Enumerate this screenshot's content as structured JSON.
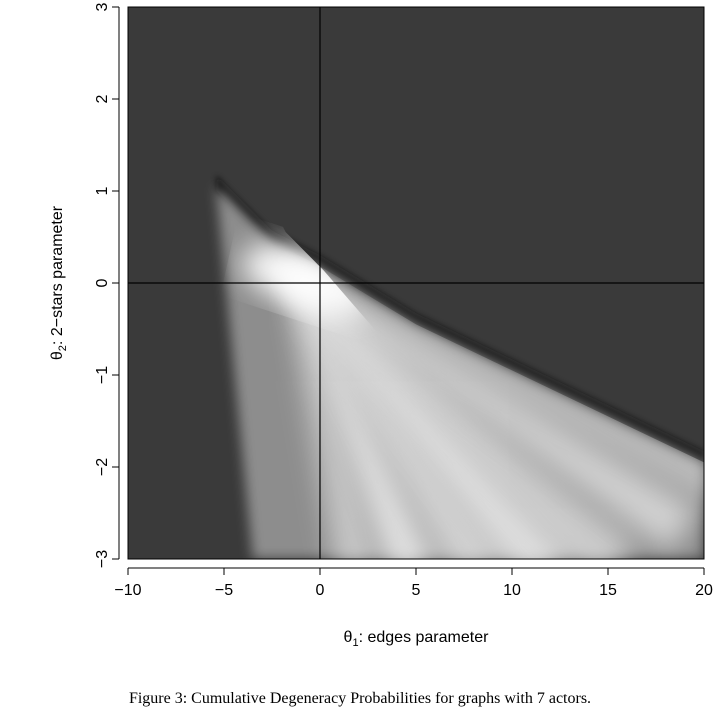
{
  "chart_data": {
    "type": "heatmap",
    "x_label": {
      "symbol": "θ",
      "sub": "1",
      "text": ": edges parameter"
    },
    "y_label": {
      "symbol": "θ",
      "sub": "2",
      "text": ": 2−stars parameter"
    },
    "xlim": [
      -10,
      20
    ],
    "ylim": [
      -3,
      3
    ],
    "x_ticks": [
      -10,
      -5,
      0,
      5,
      10,
      15,
      20
    ],
    "x_tick_labels": [
      "−10",
      "−5",
      "0",
      "5",
      "10",
      "15",
      "20"
    ],
    "y_ticks": [
      -3,
      -2,
      -1,
      0,
      1,
      2,
      3
    ],
    "y_tick_labels": [
      "−3",
      "−2",
      "−1",
      "0",
      "1",
      "2",
      "3"
    ],
    "reference_lines": {
      "x": 0,
      "y": 0
    },
    "colormap": {
      "low": "#3a3a3a",
      "high": "#ffffff",
      "edge": "#111111"
    },
    "region": {
      "boundary": [
        [
          -5.4,
          1.05
        ],
        [
          -2.5,
          0.45
        ],
        [
          0,
          0.18
        ],
        [
          5,
          -0.45
        ],
        [
          10,
          -0.95
        ],
        [
          15,
          -1.45
        ],
        [
          20,
          -1.95
        ]
      ],
      "left_edge": [
        [
          -5.4,
          1.05
        ],
        [
          -3.5,
          -3.0
        ]
      ],
      "peak": [
        -1.5,
        0.1
      ]
    }
  },
  "caption": "Figure 3: Cumulative Degeneracy Probabilities for graphs with 7 actors."
}
